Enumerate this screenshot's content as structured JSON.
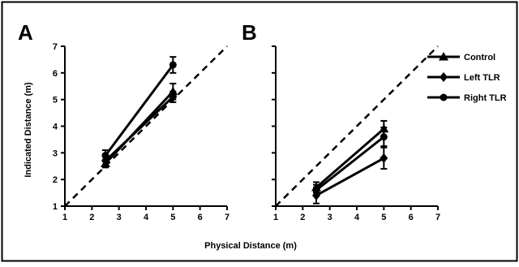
{
  "chart_data": {
    "type": "line",
    "xlabel": "Physical Distance (m)",
    "ylabel": "Indicated Distance (m)",
    "xlim": [
      1,
      7
    ],
    "ylim": [
      1,
      7
    ],
    "xticks": [
      "1",
      "2",
      "3",
      "4",
      "5",
      "6",
      "7"
    ],
    "yticks": [
      "1",
      "2",
      "3",
      "4",
      "5",
      "6",
      "7"
    ],
    "grid": false,
    "legend_position": "right",
    "legend": [
      "Control",
      "Left TLR",
      "Right TLR"
    ],
    "reference_line": {
      "style": "dashed",
      "description": "y = x"
    },
    "panels": [
      {
        "letter": "A",
        "series": [
          {
            "name": "Control",
            "marker": "triangle",
            "x": [
              2.5,
              5
            ],
            "y": [
              2.6,
              5.3
            ],
            "error": [
              0.15,
              0.3
            ]
          },
          {
            "name": "Left TLR",
            "marker": "diamond",
            "x": [
              2.5,
              5
            ],
            "y": [
              2.7,
              5.1
            ],
            "error": [
              0.15,
              0.2
            ]
          },
          {
            "name": "Right TLR",
            "marker": "circle",
            "x": [
              2.5,
              5
            ],
            "y": [
              2.9,
              6.3
            ],
            "error": [
              0.2,
              0.3
            ]
          }
        ]
      },
      {
        "letter": "B",
        "series": [
          {
            "name": "Control",
            "marker": "triangle",
            "x": [
              2.5,
              5
            ],
            "y": [
              1.7,
              3.9
            ],
            "error": [
              0.2,
              0.3
            ]
          },
          {
            "name": "Left TLR",
            "marker": "diamond",
            "x": [
              2.5,
              5
            ],
            "y": [
              1.4,
              2.8
            ],
            "error": [
              0.3,
              0.4
            ]
          },
          {
            "name": "Right TLR",
            "marker": "circle",
            "x": [
              2.5,
              5
            ],
            "y": [
              1.6,
              3.6
            ],
            "error": [
              0.2,
              0.35
            ]
          }
        ]
      }
    ]
  }
}
